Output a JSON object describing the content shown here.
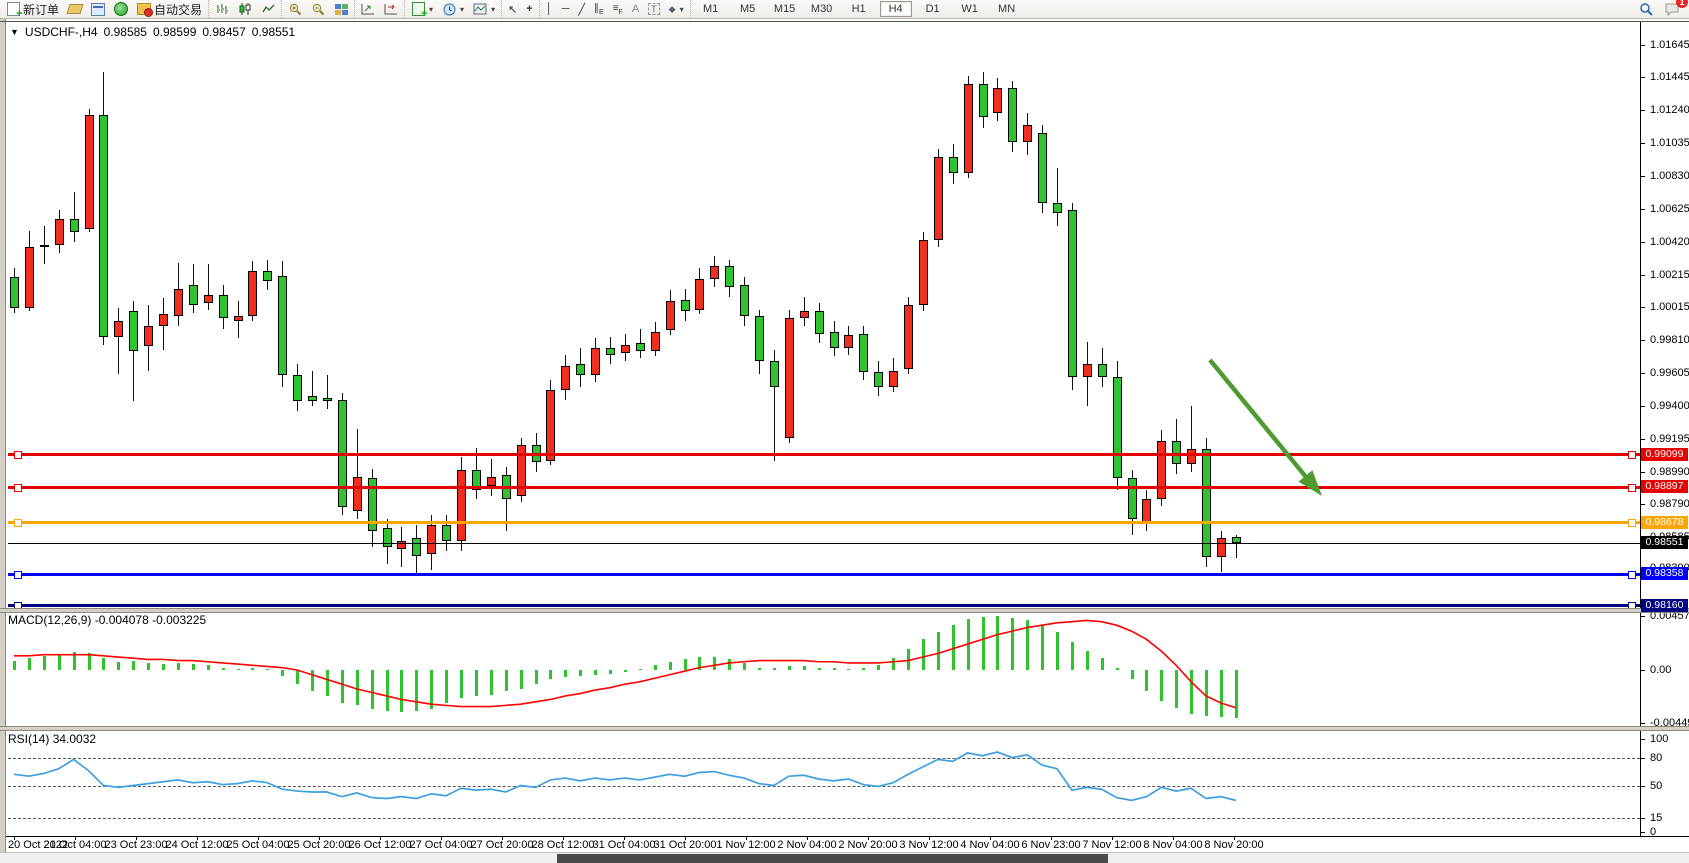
{
  "toolbar": {
    "new_order_label": "新订单",
    "autotrade_label": "自动交易",
    "timeframes": [
      "M1",
      "M5",
      "M15",
      "M30",
      "H1",
      "H4",
      "D1",
      "W1",
      "MN"
    ],
    "active_timeframe": "H4",
    "notification_badge": "1",
    "drawing_glyphs": {
      "cursor": "↖",
      "crosshair": "+",
      "vline": "│",
      "hline": "─",
      "trendline": "╱",
      "channel": "∥E",
      "fibonacci": "≡F",
      "text": "A",
      "label": "T",
      "shapes": "◆"
    }
  },
  "title_bar": {
    "dropdown": "▼",
    "symbol": "USDCHF-,H4",
    "open": "0.98585",
    "high": "0.98599",
    "low": "0.98457",
    "close": "0.98551"
  },
  "price_axis": {
    "ticks": [
      "1.01645",
      "1.01445",
      "1.01240",
      "1.01035",
      "1.00830",
      "1.00625",
      "1.00420",
      "1.00215",
      "1.00015",
      "0.99810",
      "0.99605",
      "0.99400",
      "0.99195",
      "0.98990",
      "0.98790",
      "0.98585",
      "0.98390"
    ]
  },
  "macd_panel": {
    "label": "MACD(12,26,9)",
    "value_main": "-0.004078",
    "value_signal": "-0.003225",
    "axis_ticks": [
      "0.004579",
      "0.00",
      "-0.004491"
    ]
  },
  "rsi_panel": {
    "label": "RSI(14)",
    "value": "34.0032",
    "axis_ticks": [
      "100",
      "80",
      "50",
      "15",
      "0"
    ],
    "dashed_levels": [
      80,
      50,
      15
    ]
  },
  "date_axis": {
    "labels": [
      "20 Oct 2022",
      "21 Oct 04:00",
      "23 Oct 23:00",
      "24 Oct 12:00",
      "25 Oct 04:00",
      "25 Oct 20:00",
      "26 Oct 12:00",
      "27 Oct 04:00",
      "27 Oct 20:00",
      "28 Oct 12:00",
      "31 Oct 04:00",
      "31 Oct 20:00",
      "1 Nov 12:00",
      "2 Nov 04:00",
      "2 Nov 20:00",
      "3 Nov 12:00",
      "4 Nov 04:00",
      "6 Nov 23:00",
      "7 Nov 12:00",
      "8 Nov 04:00",
      "8 Nov 20:00"
    ]
  },
  "chart_data": {
    "type": "candlestick",
    "symbol": "USDCHF",
    "timeframe": "H4",
    "title": "USDCHF-,H4 0.98585 0.98599 0.98457 0.98551",
    "up_color": "#f22e1f",
    "down_color": "#2fc32f",
    "wick_color": "#111111",
    "ylim": [
      0.9816,
      1.01645
    ],
    "candles": [
      [
        1.002,
        1.0026,
        0.9998,
        1.0001
      ],
      [
        1.0001,
        1.0049,
        0.9999,
        1.0039
      ],
      [
        1.0039,
        1.0052,
        1.0028,
        1.004
      ],
      [
        1.004,
        1.0062,
        1.0035,
        1.0056
      ],
      [
        1.0056,
        1.0073,
        1.0042,
        1.0048
      ],
      [
        1.005,
        1.0125,
        1.0048,
        1.0121
      ],
      [
        1.0121,
        1.0148,
        0.9978,
        0.9983
      ],
      [
        0.9983,
        1.0001,
        0.996,
        0.9993
      ],
      [
        0.9999,
        1.0005,
        0.9943,
        0.9974
      ],
      [
        0.9977,
        1.0003,
        0.9962,
        0.999
      ],
      [
        0.999,
        1.0007,
        0.9975,
        0.9997
      ],
      [
        0.9996,
        1.0029,
        0.999,
        1.0013
      ],
      [
        1.0015,
        1.0028,
        0.9998,
        1.0003
      ],
      [
        1.0004,
        1.0028,
        1.0,
        1.0009
      ],
      [
        1.0009,
        1.0015,
        0.9988,
        0.9995
      ],
      [
        0.9993,
        1.0005,
        0.9982,
        0.9996
      ],
      [
        0.9996,
        1.003,
        0.9993,
        1.0024
      ],
      [
        1.0024,
        1.0031,
        1.0012,
        1.0018
      ],
      [
        1.0021,
        1.003,
        0.9952,
        0.9959
      ],
      [
        0.9959,
        0.9966,
        0.9937,
        0.9943
      ],
      [
        0.9946,
        0.9962,
        0.994,
        0.9943
      ],
      [
        0.9945,
        0.9959,
        0.9938,
        0.9943
      ],
      [
        0.9944,
        0.9948,
        0.9872,
        0.9877
      ],
      [
        0.9875,
        0.9926,
        0.987,
        0.9896
      ],
      [
        0.9895,
        0.9901,
        0.9852,
        0.9862
      ],
      [
        0.9864,
        0.987,
        0.9842,
        0.9852
      ],
      [
        0.9851,
        0.9865,
        0.984,
        0.9856
      ],
      [
        0.9858,
        0.9866,
        0.9835,
        0.9847
      ],
      [
        0.9848,
        0.9872,
        0.9838,
        0.9866
      ],
      [
        0.9866,
        0.9872,
        0.985,
        0.9856
      ],
      [
        0.9856,
        0.9908,
        0.985,
        0.99
      ],
      [
        0.99,
        0.9914,
        0.9882,
        0.9888
      ],
      [
        0.989,
        0.9907,
        0.9884,
        0.9896
      ],
      [
        0.9897,
        0.9902,
        0.9862,
        0.9882
      ],
      [
        0.9884,
        0.992,
        0.988,
        0.9916
      ],
      [
        0.9916,
        0.9923,
        0.9899,
        0.9905
      ],
      [
        0.9906,
        0.9956,
        0.9903,
        0.995
      ],
      [
        0.995,
        0.9972,
        0.9944,
        0.9965
      ],
      [
        0.9966,
        0.9976,
        0.9952,
        0.9959
      ],
      [
        0.9959,
        0.9982,
        0.9955,
        0.9976
      ],
      [
        0.9976,
        0.9983,
        0.9966,
        0.9972
      ],
      [
        0.9973,
        0.9985,
        0.9968,
        0.9978
      ],
      [
        0.9979,
        0.9988,
        0.997,
        0.9974
      ],
      [
        0.9974,
        0.9992,
        0.9971,
        0.9986
      ],
      [
        0.9987,
        1.0012,
        0.9984,
        1.0005
      ],
      [
        1.0006,
        1.0013,
        0.9993,
        0.9999
      ],
      [
        1.0,
        1.0026,
        0.9997,
        1.0019
      ],
      [
        1.0019,
        1.0033,
        1.0014,
        1.0027
      ],
      [
        1.0027,
        1.0031,
        1.0008,
        1.0014
      ],
      [
        1.0015,
        1.002,
        0.999,
        0.9996
      ],
      [
        0.9996,
        1.0,
        0.996,
        0.9968
      ],
      [
        0.9968,
        0.9975,
        0.9906,
        0.9952
      ],
      [
        0.992,
        1.0,
        0.9917,
        0.9995
      ],
      [
        0.9995,
        1.0008,
        0.999,
        0.9999
      ],
      [
        0.9999,
        1.0004,
        0.9979,
        0.9985
      ],
      [
        0.9986,
        0.9993,
        0.9971,
        0.9976
      ],
      [
        0.9976,
        0.999,
        0.9972,
        0.9984
      ],
      [
        0.9985,
        0.999,
        0.9956,
        0.9961
      ],
      [
        0.9961,
        0.9968,
        0.9946,
        0.9952
      ],
      [
        0.9952,
        0.997,
        0.9949,
        0.9962
      ],
      [
        0.9963,
        1.0008,
        0.996,
        1.0003
      ],
      [
        1.0003,
        1.0048,
        0.9999,
        1.0043
      ],
      [
        1.0043,
        1.01,
        1.0039,
        1.0095
      ],
      [
        1.0095,
        1.0103,
        1.0078,
        1.0085
      ],
      [
        1.0085,
        1.0145,
        1.0082,
        1.014
      ],
      [
        1.014,
        1.0148,
        1.0113,
        1.012
      ],
      [
        1.0122,
        1.0144,
        1.0117,
        1.0138
      ],
      [
        1.0138,
        1.0142,
        1.0098,
        1.0104
      ],
      [
        1.0104,
        1.0122,
        1.0096,
        1.0115
      ],
      [
        1.011,
        1.0115,
        1.006,
        1.0066
      ],
      [
        1.0066,
        1.0088,
        1.0052,
        1.006
      ],
      [
        1.0062,
        1.0066,
        0.995,
        0.9958
      ],
      [
        0.9958,
        0.998,
        0.994,
        0.9966
      ],
      [
        0.9966,
        0.9976,
        0.9952,
        0.9958
      ],
      [
        0.9958,
        0.9968,
        0.9888,
        0.9895
      ],
      [
        0.9895,
        0.99,
        0.986,
        0.987
      ],
      [
        0.9868,
        0.9888,
        0.9862,
        0.9882
      ],
      [
        0.9882,
        0.9925,
        0.9878,
        0.9918
      ],
      [
        0.9918,
        0.9932,
        0.9898,
        0.9904
      ],
      [
        0.9904,
        0.994,
        0.9899,
        0.9913
      ],
      [
        0.9913,
        0.992,
        0.984,
        0.9846
      ],
      [
        0.9846,
        0.9862,
        0.9837,
        0.9858
      ],
      [
        0.98585,
        0.98599,
        0.98457,
        0.98551
      ]
    ],
    "levels": [
      {
        "price": "0.99099",
        "color": "#e60000",
        "thickness": 3,
        "handles": true
      },
      {
        "price": "0.98897",
        "color": "#e60000",
        "thickness": 3,
        "handles": true
      },
      {
        "price": "0.98678",
        "color": "#ffa500",
        "thickness": 3,
        "handles": true
      },
      {
        "price": "0.98551",
        "color": "#000000",
        "thickness": 1,
        "handles": false
      },
      {
        "price": "0.98358",
        "color": "#0000ff",
        "thickness": 3,
        "handles": true
      },
      {
        "price": "0.98160",
        "color": "#000080",
        "thickness": 3,
        "handles": true
      }
    ],
    "annotation_arrow": {
      "direction": "down-right",
      "color": "#4e9b30",
      "points_to": "0.98897 level"
    },
    "macd_hist": [
      0.0008,
      0.001,
      0.0012,
      0.0013,
      0.0015,
      0.0014,
      0.001,
      0.0007,
      0.0008,
      0.0006,
      0.0005,
      0.0006,
      0.0005,
      0.0004,
      0.0002,
      0.0001,
      0.0002,
      0.0001,
      -0.0005,
      -0.0012,
      -0.0018,
      -0.0022,
      -0.0028,
      -0.003,
      -0.0033,
      -0.0035,
      -0.0036,
      -0.0035,
      -0.0033,
      -0.0028,
      -0.0024,
      -0.0022,
      -0.0021,
      -0.0018,
      -0.0016,
      -0.0012,
      -0.0008,
      -0.0006,
      -0.0005,
      -0.0004,
      -0.0003,
      -0.0002,
      0.0001,
      0.0004,
      0.0007,
      0.0009,
      0.0011,
      0.0011,
      0.0009,
      0.0006,
      0.0002,
      0.0002,
      0.0003,
      0.0003,
      0.0002,
      0.0002,
      0.0001,
      0.0002,
      0.0004,
      0.001,
      0.0018,
      0.0026,
      0.0032,
      0.0038,
      0.0043,
      0.0045,
      0.0046,
      0.0044,
      0.0042,
      0.0038,
      0.0032,
      0.0024,
      0.0016,
      0.001,
      0.0002,
      -0.0008,
      -0.0018,
      -0.0026,
      -0.0032,
      -0.0037,
      -0.0039,
      -0.004,
      -0.0041
    ],
    "macd_signal": [
      0.0012,
      0.0012,
      0.0013,
      0.0013,
      0.0013,
      0.0013,
      0.0012,
      0.0011,
      0.001,
      0.0009,
      0.0009,
      0.0008,
      0.0008,
      0.0007,
      0.0006,
      0.0005,
      0.0004,
      0.0003,
      0.0002,
      0.0,
      -0.0004,
      -0.0008,
      -0.0012,
      -0.0016,
      -0.0019,
      -0.0022,
      -0.0025,
      -0.0027,
      -0.0029,
      -0.003,
      -0.0031,
      -0.0031,
      -0.0031,
      -0.003,
      -0.0029,
      -0.0027,
      -0.0025,
      -0.0022,
      -0.002,
      -0.0017,
      -0.0015,
      -0.0012,
      -0.001,
      -0.0007,
      -0.0004,
      -0.0001,
      0.0002,
      0.0004,
      0.0006,
      0.0007,
      0.0008,
      0.0008,
      0.0008,
      0.0008,
      0.0007,
      0.0007,
      0.0006,
      0.0006,
      0.0006,
      0.0007,
      0.0008,
      0.0011,
      0.0014,
      0.0018,
      0.0022,
      0.0026,
      0.003,
      0.0033,
      0.0036,
      0.0038,
      0.004,
      0.0041,
      0.0042,
      0.0041,
      0.0038,
      0.0033,
      0.0026,
      0.0016,
      0.0004,
      -0.001,
      -0.0022,
      -0.0028,
      -0.0032
    ],
    "rsi": [
      62,
      60,
      63,
      68,
      78,
      66,
      50,
      48,
      50,
      52,
      54,
      56,
      53,
      54,
      51,
      52,
      55,
      53,
      46,
      44,
      43,
      43,
      38,
      42,
      37,
      36,
      38,
      36,
      41,
      39,
      47,
      45,
      46,
      43,
      50,
      48,
      56,
      58,
      55,
      58,
      56,
      58,
      56,
      59,
      62,
      60,
      64,
      65,
      61,
      58,
      52,
      50,
      60,
      61,
      57,
      55,
      57,
      51,
      49,
      53,
      62,
      70,
      78,
      76,
      85,
      82,
      86,
      80,
      83,
      72,
      68,
      45,
      48,
      46,
      37,
      34,
      38,
      48,
      44,
      47,
      36,
      38,
      34
    ]
  }
}
